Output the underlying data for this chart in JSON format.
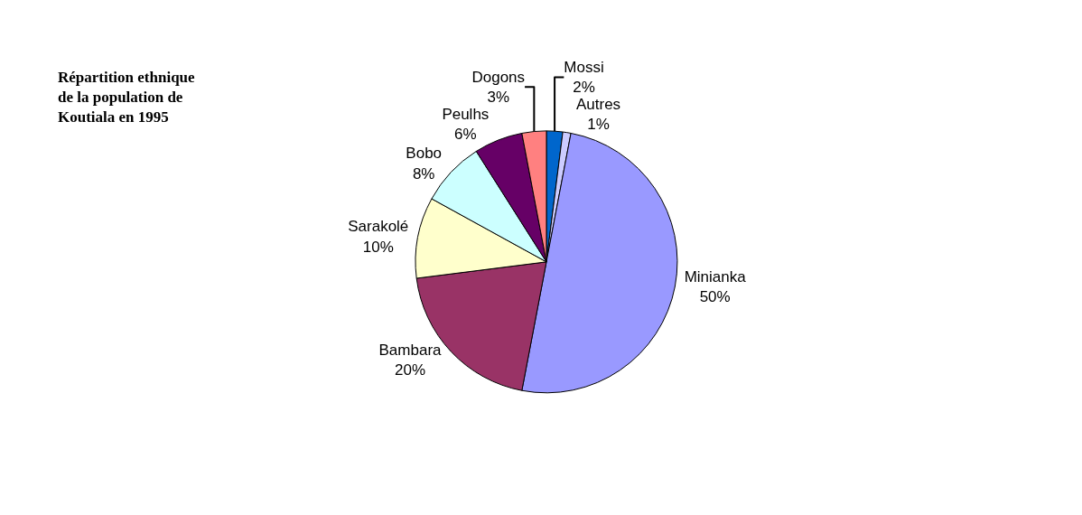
{
  "chart_data": {
    "type": "pie",
    "title": "Répartition ethnique de la population de Koutiala en 1995",
    "categories": [
      "Mossi",
      "Autres",
      "Minianka",
      "Bambara",
      "Sarakolé",
      "Bobo",
      "Peulhs",
      "Dogons"
    ],
    "values": [
      2,
      1,
      50,
      20,
      10,
      8,
      6,
      3
    ],
    "value_labels": [
      "2%",
      "1%",
      "50%",
      "20%",
      "10%",
      "8%",
      "6%",
      "3%"
    ],
    "colors": [
      "#0066cc",
      "#ccccff",
      "#9999ff",
      "#993366",
      "#ffffcc",
      "#ccffff",
      "#660066",
      "#ff8080"
    ],
    "legend": false
  }
}
